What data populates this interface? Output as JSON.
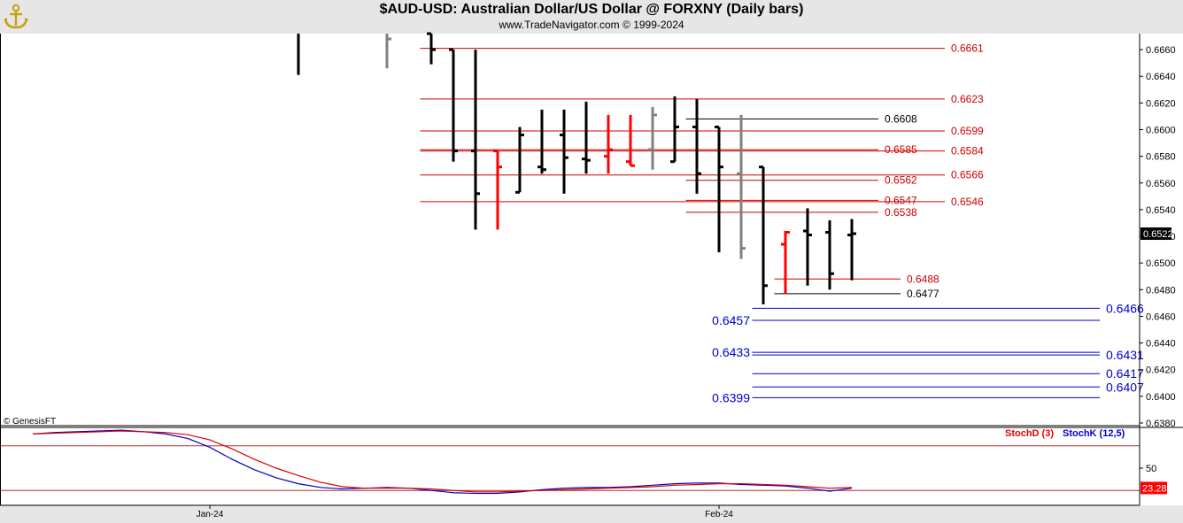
{
  "header": {
    "title": "$AUD-USD:  Australian Dollar/US Dollar @ FORXNY  (Daily bars)",
    "subtitle": "www.TradeNavigator.com © 1999-2024",
    "logo_icon": "gold-anchor-logo"
  },
  "watermark": "© GenesisFT",
  "colors": {
    "bar_up": "#000000",
    "bar_red": "#ff0000",
    "bar_gray": "#808080",
    "level_red": "#cc0000",
    "level_black": "#000000",
    "level_blue": "#0000cc",
    "stoch_d": "#dd0000",
    "stoch_k": "#0000cc",
    "last_price_bg": "#000000",
    "stoch_value_bg": "#ff0000"
  },
  "chart_data": {
    "type": "ohlc",
    "price_axis": {
      "ylim": [
        0.6378,
        0.6672
      ],
      "ticks": [
        "0.6660",
        "0.6640",
        "0.6620",
        "0.6600",
        "0.6580",
        "0.6560",
        "0.6540",
        "0.6520",
        "0.6500",
        "0.6480",
        "0.6460",
        "0.6440",
        "0.6420",
        "0.6400",
        "0.6380"
      ],
      "tick_values": [
        0.666,
        0.664,
        0.662,
        0.66,
        0.658,
        0.656,
        0.654,
        0.652,
        0.65,
        0.648,
        0.646,
        0.644,
        0.642,
        0.64,
        0.638
      ],
      "last_price": "0.6522",
      "last_value": 0.6522
    },
    "x_labels": [
      {
        "label": "Jan-24",
        "index": 8
      },
      {
        "label": "Feb-24",
        "index": 31
      }
    ],
    "bars": [
      {
        "i": 12,
        "o": 0.6712,
        "h": 0.672,
        "l": 0.6641,
        "c": 0.6695,
        "color": "black"
      },
      {
        "i": 16,
        "o": 0.669,
        "h": 0.67,
        "l": 0.6646,
        "c": 0.6668,
        "color": "gray"
      },
      {
        "i": 18,
        "o": 0.6672,
        "h": 0.6672,
        "l": 0.6649,
        "c": 0.666,
        "color": "black"
      },
      {
        "i": 19,
        "o": 0.666,
        "h": 0.666,
        "l": 0.6576,
        "c": 0.6584,
        "color": "black"
      },
      {
        "i": 20,
        "o": 0.6584,
        "h": 0.666,
        "l": 0.6525,
        "c": 0.6552,
        "color": "black"
      },
      {
        "i": 21,
        "o": 0.6584,
        "h": 0.6584,
        "l": 0.6525,
        "c": 0.6572,
        "color": "red"
      },
      {
        "i": 22,
        "o": 0.6553,
        "h": 0.6602,
        "l": 0.6553,
        "c": 0.6596,
        "color": "black"
      },
      {
        "i": 23,
        "o": 0.6572,
        "h": 0.6615,
        "l": 0.6567,
        "c": 0.657,
        "color": "black"
      },
      {
        "i": 24,
        "o": 0.6596,
        "h": 0.6615,
        "l": 0.6552,
        "c": 0.6579,
        "color": "black"
      },
      {
        "i": 25,
        "o": 0.6578,
        "h": 0.6621,
        "l": 0.6567,
        "c": 0.6577,
        "color": "black"
      },
      {
        "i": 26,
        "o": 0.658,
        "h": 0.6611,
        "l": 0.6567,
        "c": 0.6585,
        "color": "red"
      },
      {
        "i": 27,
        "o": 0.6576,
        "h": 0.6611,
        "l": 0.6573,
        "c": 0.6573,
        "color": "red"
      },
      {
        "i": 28,
        "o": 0.6585,
        "h": 0.6617,
        "l": 0.657,
        "c": 0.6611,
        "color": "gray"
      },
      {
        "i": 29,
        "o": 0.6576,
        "h": 0.6625,
        "l": 0.6576,
        "c": 0.6602,
        "color": "black"
      },
      {
        "i": 30,
        "o": 0.6602,
        "h": 0.6623,
        "l": 0.6552,
        "c": 0.6567,
        "color": "black"
      },
      {
        "i": 31,
        "o": 0.6602,
        "h": 0.6602,
        "l": 0.6508,
        "c": 0.6572,
        "color": "black"
      },
      {
        "i": 32,
        "o": 0.6567,
        "h": 0.6611,
        "l": 0.6503,
        "c": 0.6511,
        "color": "gray"
      },
      {
        "i": 33,
        "o": 0.6572,
        "h": 0.6572,
        "l": 0.6469,
        "c": 0.6483,
        "color": "black"
      },
      {
        "i": 34,
        "o": 0.6514,
        "h": 0.6524,
        "l": 0.6477,
        "c": 0.6523,
        "color": "red"
      },
      {
        "i": 35,
        "o": 0.6524,
        "h": 0.6541,
        "l": 0.6483,
        "c": 0.6521,
        "color": "black"
      },
      {
        "i": 36,
        "o": 0.6523,
        "h": 0.6532,
        "l": 0.648,
        "c": 0.6492,
        "color": "black"
      },
      {
        "i": 37,
        "o": 0.6521,
        "h": 0.6533,
        "l": 0.6487,
        "c": 0.6522,
        "color": "black"
      }
    ],
    "levels": [
      {
        "value": 0.6661,
        "label": "0.6661",
        "color": "red",
        "x1": 17.5,
        "x2": 41.2,
        "label_side": "right",
        "label_at": 41.4
      },
      {
        "value": 0.6623,
        "label": "0.6623",
        "color": "red",
        "x1": 17.5,
        "x2": 41.2,
        "label_side": "right",
        "label_at": 41.4
      },
      {
        "value": 0.6608,
        "label": "0.6608",
        "color": "black",
        "x1": 29.5,
        "x2": 38.2,
        "label_side": "right",
        "label_at": 38.4
      },
      {
        "value": 0.6599,
        "label": "0.6599",
        "color": "red",
        "x1": 17.5,
        "x2": 41.2,
        "label_side": "right",
        "label_at": 41.4
      },
      {
        "value": 0.6584,
        "label": "0.6584",
        "color": "red",
        "x1": 17.5,
        "x2": 41.2,
        "label_side": "right",
        "label_at": 41.4
      },
      {
        "value": 0.6585,
        "label": "0.6585",
        "color": "red",
        "x1": 17.5,
        "x2": 38.2,
        "label_side": "right",
        "label_at": 38.4
      },
      {
        "value": 0.6566,
        "label": "0.6566",
        "color": "red",
        "x1": 17.5,
        "x2": 41.2,
        "label_side": "right",
        "label_at": 41.4
      },
      {
        "value": 0.6562,
        "label": "0.6562",
        "color": "red",
        "x1": 29.5,
        "x2": 38.2,
        "label_side": "right",
        "label_at": 38.4
      },
      {
        "value": 0.6547,
        "label": "0.6547",
        "color": "red",
        "x1": 29.5,
        "x2": 38.2,
        "label_side": "right",
        "label_at": 38.4
      },
      {
        "value": 0.6546,
        "label": "0.6546",
        "color": "red",
        "x1": 17.5,
        "x2": 41.2,
        "label_side": "right",
        "label_at": 41.4
      },
      {
        "value": 0.6538,
        "label": "0.6538",
        "color": "red",
        "x1": 29.5,
        "x2": 38.2,
        "label_side": "right",
        "label_at": 38.4
      },
      {
        "value": 0.6488,
        "label": "0.6488",
        "color": "red",
        "x1": 33.5,
        "x2": 39.2,
        "label_side": "right",
        "label_at": 39.4
      },
      {
        "value": 0.6477,
        "label": "0.6477",
        "color": "black",
        "x1": 33.5,
        "x2": 39.2,
        "label_side": "right",
        "label_at": 39.4
      },
      {
        "value": 0.6466,
        "label": "0.6466",
        "color": "blue",
        "x1": 32.5,
        "x2": 48.2,
        "label_side": "right",
        "label_at": 48.4
      },
      {
        "value": 0.6457,
        "label": "0.6457",
        "color": "blue",
        "x1": 32.5,
        "x2": 48.2,
        "label_side": "left",
        "label_at": 32.4
      },
      {
        "value": 0.6433,
        "label": "0.6433",
        "color": "blue",
        "x1": 32.5,
        "x2": 48.2,
        "label_side": "left",
        "label_at": 32.4
      },
      {
        "value": 0.6431,
        "label": "0.6431",
        "color": "blue",
        "x1": 32.5,
        "x2": 48.2,
        "label_side": "right",
        "label_at": 48.4
      },
      {
        "value": 0.6417,
        "label": "0.6417",
        "color": "blue",
        "x1": 32.5,
        "x2": 48.2,
        "label_side": "right",
        "label_at": 48.4
      },
      {
        "value": 0.6407,
        "label": "0.6407",
        "color": "blue",
        "x1": 32.5,
        "x2": 48.2,
        "label_side": "right",
        "label_at": 48.4
      },
      {
        "value": 0.6399,
        "label": "0.6399",
        "color": "blue",
        "x1": 32.5,
        "x2": 48.2,
        "label_side": "left",
        "label_at": 32.4
      }
    ],
    "stochastic": {
      "legend_d": "StochD (3)",
      "legend_k": "StochK (12,5)",
      "ylim": [
        0,
        100
      ],
      "tick": "50",
      "tick_value": 50,
      "reference_lines": [
        80,
        20
      ],
      "last_value": "23.28",
      "last_numeric": 23.28,
      "x": [
        0,
        1,
        2,
        3,
        4,
        5,
        6,
        7,
        8,
        9,
        10,
        11,
        12,
        13,
        14,
        15,
        16,
        17,
        18,
        19,
        20,
        21,
        22,
        23,
        24,
        25,
        26,
        27,
        28,
        29,
        30,
        31,
        32,
        33,
        34,
        35,
        36,
        37
      ],
      "d": [
        96,
        97,
        98,
        99,
        100,
        99,
        98,
        95,
        88,
        76,
        62,
        50,
        40,
        31,
        25,
        23,
        23,
        23,
        22,
        20,
        18,
        18,
        19,
        20,
        21,
        22,
        23,
        24,
        25,
        27,
        28,
        29,
        29,
        28,
        27,
        25,
        23,
        24
      ],
      "k": [
        96,
        98,
        99,
        100,
        101,
        99,
        96,
        90,
        78,
        62,
        48,
        37,
        29,
        24,
        22,
        23,
        24,
        23,
        20,
        17,
        16,
        16,
        18,
        21,
        23,
        24,
        24,
        25,
        27,
        29,
        30,
        30,
        28,
        27,
        26,
        23,
        19,
        23
      ]
    }
  }
}
